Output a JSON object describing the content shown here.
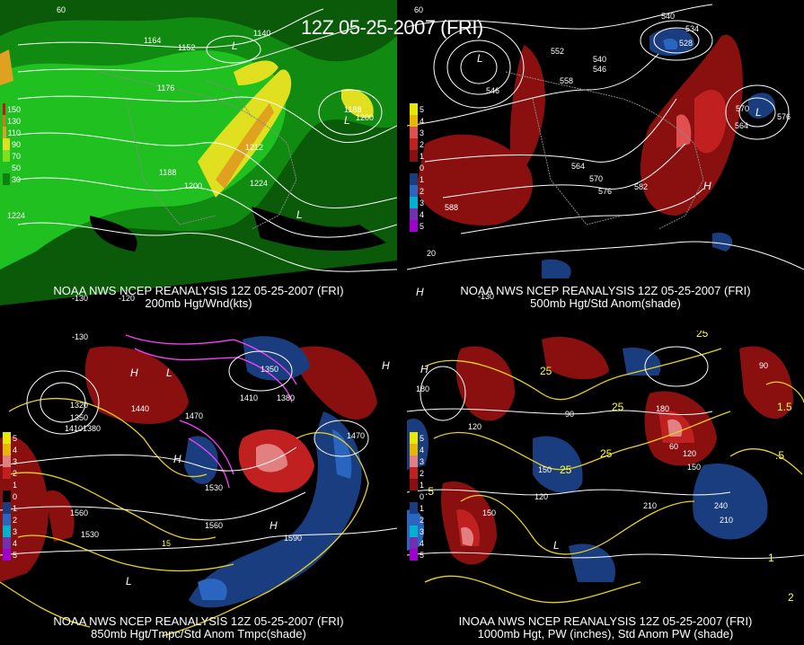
{
  "main_title": "12Z 05-25-2007 (FRI)",
  "panels": [
    {
      "id": "p1",
      "caption_line1": "NOAA NWS NCEP REANALYSIS 12Z 05-25-2007 (FRI)",
      "caption_line2": "200mb Hgt/Wnd(kts)",
      "legend": [
        {
          "label": "150",
          "color": "#c81414"
        },
        {
          "label": "130",
          "color": "#e07014"
        },
        {
          "label": "110",
          "color": "#e0a020"
        },
        {
          "label": "90",
          "color": "#e0e020"
        },
        {
          "label": "70",
          "color": "#80e020"
        },
        {
          "label": "50",
          "color": "#20c020"
        },
        {
          "label": "30",
          "color": "#108010"
        }
      ],
      "contour_labels": [
        "1164",
        "1152",
        "1140",
        "1176",
        "1188",
        "1200",
        "1212",
        "1224",
        "1188",
        "1200",
        "1224"
      ],
      "lon_labels": [
        "-130",
        "-120"
      ],
      "lat_labels": [
        "60"
      ]
    },
    {
      "id": "p2",
      "caption_line1": "NOAA NWS NCEP REANALYSIS 12Z 05-25-2007 (FRI)",
      "caption_line2": "500mb Hgt/Std Anom(shade)",
      "legend": [
        {
          "label": "5",
          "color": "#e8e800"
        },
        {
          "label": "4",
          "color": "#e8b800"
        },
        {
          "label": "3",
          "color": "#e05050"
        },
        {
          "label": "2",
          "color": "#c02020"
        },
        {
          "label": "1",
          "color": "#8a1010"
        },
        {
          "label": "0",
          "color": "#000000"
        },
        {
          "label": "1",
          "color": "#1a3d80"
        },
        {
          "label": "2",
          "color": "#2a66c0"
        },
        {
          "label": "3",
          "color": "#00b0d0"
        },
        {
          "label": "4",
          "color": "#7030b0"
        },
        {
          "label": "5",
          "color": "#a000d0"
        }
      ],
      "contour_labels": [
        "540",
        "534",
        "528",
        "552",
        "540",
        "546",
        "546",
        "558",
        "564",
        "570",
        "576",
        "582",
        "570",
        "576",
        "564",
        "588"
      ],
      "lon_labels": [
        "-130"
      ],
      "lat_labels": [
        "60",
        "20"
      ]
    },
    {
      "id": "p3",
      "caption_line1": "NOAA NWS NCEP REANALYSIS 12Z 05-25-2007 (FRI)",
      "caption_line2": "850mb Hgt/Tmpc/Std Anom Tmpc(shade)",
      "legend": [
        {
          "label": "5",
          "color": "#e8e800"
        },
        {
          "label": "4",
          "color": "#e8b800"
        },
        {
          "label": "3",
          "color": "#e08080"
        },
        {
          "label": "2",
          "color": "#c02020"
        },
        {
          "label": "1",
          "color": "#8a1010"
        },
        {
          "label": "0",
          "color": "#000000"
        },
        {
          "label": "1",
          "color": "#1a3d80"
        },
        {
          "label": "2",
          "color": "#2a66c0"
        },
        {
          "label": "3",
          "color": "#00b0d0"
        },
        {
          "label": "4",
          "color": "#7030b0"
        },
        {
          "label": "5",
          "color": "#a000d0"
        }
      ],
      "contour_labels": [
        "1320",
        "1350",
        "1410",
        "1380",
        "1440",
        "1470",
        "1410",
        "1350",
        "1380",
        "1470",
        "1530",
        "1560",
        "1530",
        "1560",
        "1590",
        "15"
      ],
      "lon_labels": [
        "-130"
      ],
      "lat_labels": []
    },
    {
      "id": "p4",
      "caption_line1": "INOAA NWS NCEP REANALYSIS 12Z 05-25-2007 (FRI)",
      "caption_line2": "1000mb Hgt, PW (inches), Std Anom PW (shade)",
      "legend": [
        {
          "label": "5",
          "color": "#e8e800"
        },
        {
          "label": "4",
          "color": "#e8b800"
        },
        {
          "label": "3",
          "color": "#e08080"
        },
        {
          "label": "2",
          "color": "#c02020"
        },
        {
          "label": "1",
          "color": "#8a1010"
        },
        {
          "label": "0",
          "color": "#000000"
        },
        {
          "label": "1",
          "color": "#1a3d80"
        },
        {
          "label": "2",
          "color": "#2a66c0"
        },
        {
          "label": "3",
          "color": "#00b0d0"
        },
        {
          "label": "4",
          "color": "#7030b0"
        },
        {
          "label": "5",
          "color": "#a000d0"
        }
      ],
      "contour_labels": [
        "25",
        "25",
        "25",
        "25",
        "25",
        "90",
        "120",
        "180",
        "60",
        "120",
        "150",
        "180",
        "150",
        "120",
        "90",
        "210",
        "240",
        "210",
        "150",
        ".5",
        "1.5",
        "2",
        ".5",
        "1"
      ],
      "lon_labels": [],
      "lat_labels": []
    }
  ],
  "pressure_centers": [
    "L",
    "L",
    "L",
    "H",
    "H",
    "H",
    "H",
    "L",
    "L",
    "L",
    "H",
    "L",
    "H",
    "H"
  ]
}
